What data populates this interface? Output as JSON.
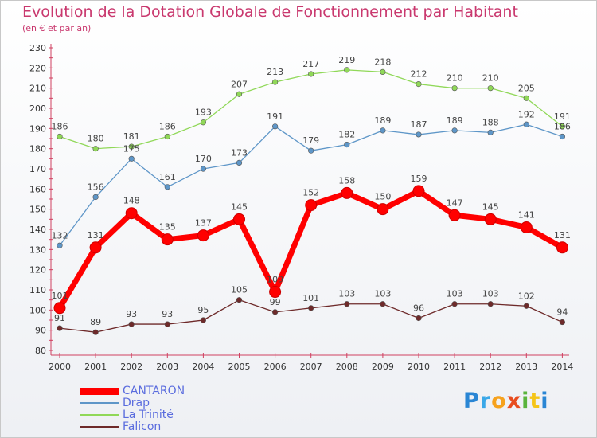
{
  "chart_data": {
    "type": "line",
    "title": "Evolution de la Dotation Globale de Fonctionnement par Habitant",
    "subtitle": "(en € et par an)",
    "xlabel": "",
    "ylabel": "",
    "ylim": [
      80,
      230
    ],
    "y_ticks": [
      "80",
      "90",
      "100",
      "110",
      "120",
      "130",
      "140",
      "150",
      "160",
      "170",
      "180",
      "190",
      "200",
      "210",
      "220",
      "230"
    ],
    "categories": [
      "2000",
      "2001",
      "2002",
      "2003",
      "2004",
      "2005",
      "2006",
      "2007",
      "2008",
      "2009",
      "2010",
      "2011",
      "2012",
      "2013",
      "2014"
    ],
    "grid": false,
    "legend_position": "bottom-left",
    "series": [
      {
        "name": "CANTARON",
        "color": "#ff0000",
        "values": [
          101,
          131,
          148,
          135,
          137,
          145,
          109,
          152,
          158,
          150,
          159,
          147,
          145,
          141,
          131
        ]
      },
      {
        "name": "Drap",
        "color": "#5e96c8",
        "values": [
          132,
          156,
          175,
          161,
          170,
          173,
          191,
          179,
          182,
          189,
          187,
          189,
          188,
          192,
          186
        ]
      },
      {
        "name": "La Trinité",
        "color": "#90d858",
        "values": [
          186,
          180,
          181,
          186,
          193,
          207,
          213,
          217,
          219,
          218,
          212,
          210,
          210,
          205,
          191
        ]
      },
      {
        "name": "Falicon",
        "color": "#6e2a2a",
        "values": [
          91,
          89,
          93,
          93,
          95,
          105,
          99,
          101,
          103,
          103,
          96,
          103,
          103,
          102,
          94
        ]
      }
    ]
  },
  "logo": {
    "letters": [
      "P",
      "r",
      "o",
      "x",
      "i",
      "t",
      "i"
    ],
    "colors": [
      "#2a86d4",
      "#3aa8e8",
      "#f6a21d",
      "#e84c1e",
      "#5ab43c",
      "#f5c518",
      "#2a86d4"
    ]
  }
}
